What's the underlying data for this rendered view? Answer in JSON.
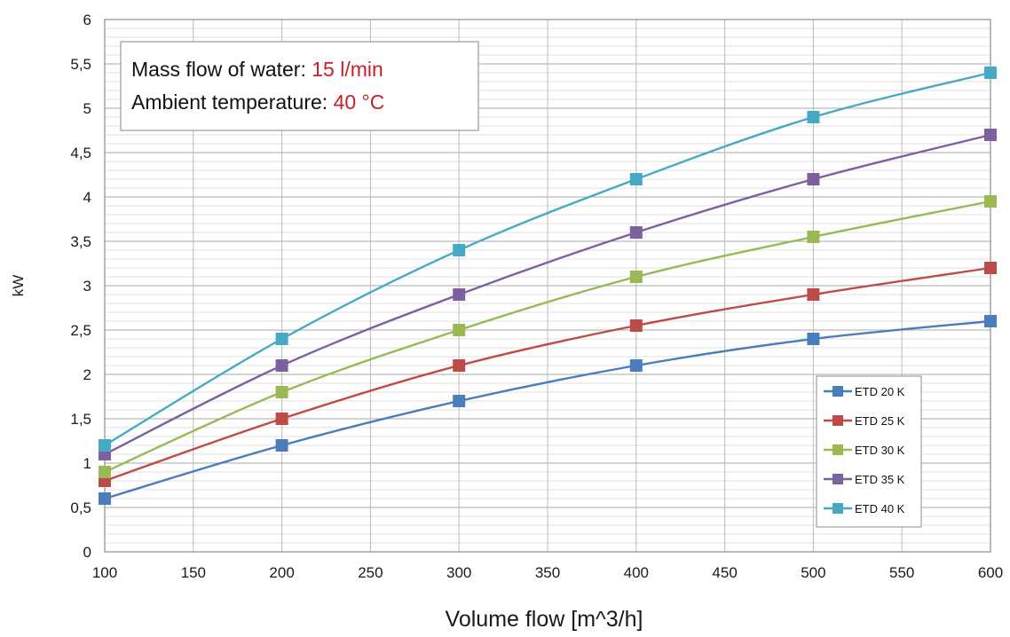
{
  "chart_data": {
    "type": "line",
    "title": "",
    "xlabel": "Volume flow [m^3/h]",
    "ylabel": "kW",
    "x": [
      100,
      200,
      300,
      400,
      500,
      600
    ],
    "xlim": [
      100,
      600
    ],
    "ylim": [
      0,
      6
    ],
    "xticks": [
      100,
      150,
      200,
      250,
      300,
      350,
      400,
      450,
      500,
      550,
      600
    ],
    "xtick_labels": [
      "100",
      "150",
      "200",
      "250",
      "300",
      "350",
      "400",
      "450",
      "500",
      "550",
      "600"
    ],
    "yticks": [
      0,
      0.5,
      1,
      1.5,
      2,
      2.5,
      3,
      3.5,
      4,
      4.5,
      5,
      5.5,
      6
    ],
    "ytick_labels": [
      "0",
      "0,5",
      "1",
      "1,5",
      "2",
      "2,5",
      "3",
      "3,5",
      "4",
      "4,5",
      "5",
      "5,5",
      "6"
    ],
    "grid": true,
    "legend_position": "bottom-right",
    "series": [
      {
        "name": "ETD 20 K",
        "color": "#4a7ebb",
        "values": [
          0.6,
          1.2,
          1.7,
          2.1,
          2.4,
          2.6
        ]
      },
      {
        "name": "ETD 25 K",
        "color": "#be4b48",
        "values": [
          0.8,
          1.5,
          2.1,
          2.55,
          2.9,
          3.2
        ]
      },
      {
        "name": "ETD 30 K",
        "color": "#98b954",
        "values": [
          0.9,
          1.8,
          2.5,
          3.1,
          3.55,
          3.95
        ]
      },
      {
        "name": "ETD 35 K",
        "color": "#7d60a0",
        "values": [
          1.1,
          2.1,
          2.9,
          3.6,
          4.2,
          4.7
        ]
      },
      {
        "name": "ETD 40 K",
        "color": "#46aac5",
        "values": [
          1.2,
          2.4,
          3.4,
          4.2,
          4.9,
          5.4
        ]
      }
    ],
    "annotation": {
      "line1_label": "Mass flow of water: ",
      "line1_value": "15 l/min",
      "line2_label": "Ambient temperature: ",
      "line2_value": "40 °C",
      "value_color": "#c8202a"
    }
  }
}
